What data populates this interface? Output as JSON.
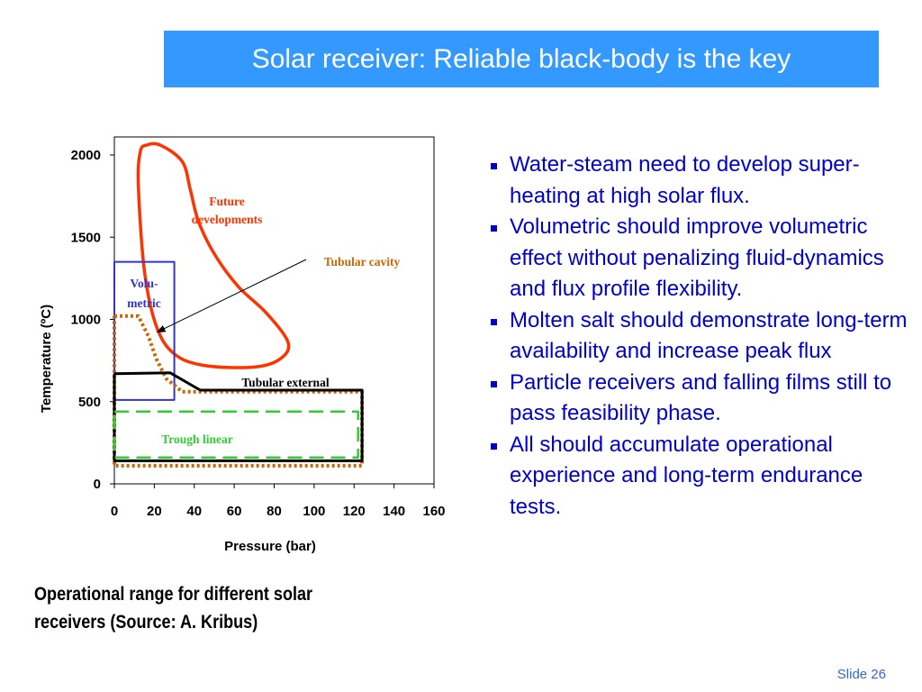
{
  "slide": {
    "title": "Solar receiver: Reliable black-body is the key",
    "caption_line1": "Operational range for different solar",
    "caption_line2": "receivers (Source: A. Kribus)",
    "slide_number": "Slide 26",
    "bullets": [
      "Water-steam need to develop super-heating at high solar flux.",
      "Volumetric should improve volumetric effect without penalizing fluid-dynamics and flux profile flexibility.",
      "Molten salt should demonstrate long-term availability and increase peak flux",
      "Particle receivers and falling films still to pass feasibility phase.",
      "All should accumulate operational experience and long-term endurance tests."
    ]
  },
  "chart_data": {
    "type": "area",
    "xlabel": "Pressure (bar)",
    "ylabel": "Temperature (ºC)",
    "xlim": [
      0,
      160
    ],
    "ylim": [
      0,
      2000
    ],
    "xticks": [
      "0",
      "20",
      "40",
      "60",
      "80",
      "100",
      "120",
      "140",
      "160"
    ],
    "yticks": [
      "0",
      "500",
      "1000",
      "1500",
      "2000"
    ],
    "grid": false,
    "colors": {
      "future": "#ff3300",
      "volumetric": "#3333cc",
      "tubular_cavity": "#cc6600",
      "tubular_external": "#000000",
      "trough": "#33cc33"
    },
    "regions": [
      {
        "name": "Future developments",
        "label_line1": "Future",
        "label_line2": "developments",
        "style": "solid",
        "points": [
          [
            12,
            1820
          ],
          [
            13,
            2020
          ],
          [
            16,
            2060
          ],
          [
            23,
            2060
          ],
          [
            34,
            1960
          ],
          [
            38,
            1790
          ],
          [
            42,
            1600
          ],
          [
            50,
            1400
          ],
          [
            62,
            1200
          ],
          [
            76,
            1040
          ],
          [
            87,
            860
          ],
          [
            83,
            760
          ],
          [
            70,
            710
          ],
          [
            45,
            720
          ],
          [
            30,
            790
          ],
          [
            21,
            960
          ],
          [
            15,
            1300
          ],
          [
            12,
            1820
          ]
        ]
      },
      {
        "name": "Volumetric",
        "label_line1": "Volu-",
        "label_line2": "metric",
        "style": "solid",
        "points": [
          [
            0,
            1350
          ],
          [
            30,
            1350
          ],
          [
            30,
            510
          ],
          [
            0,
            510
          ],
          [
            0,
            1350
          ]
        ]
      },
      {
        "name": "Tubular cavity",
        "label": "Tubular cavity",
        "style": "dotted",
        "points": [
          [
            0,
            1020
          ],
          [
            12,
            1020
          ],
          [
            17,
            900
          ],
          [
            21,
            760
          ],
          [
            26,
            640
          ],
          [
            34,
            560
          ],
          [
            124,
            560
          ],
          [
            124,
            110
          ],
          [
            0,
            110
          ],
          [
            0,
            1020
          ]
        ]
      },
      {
        "name": "Tubular external",
        "label": "Tubular external",
        "style": "solid",
        "points": [
          [
            0,
            670
          ],
          [
            28,
            675
          ],
          [
            43,
            570
          ],
          [
            124,
            570
          ],
          [
            124,
            140
          ],
          [
            0,
            140
          ],
          [
            0,
            670
          ]
        ]
      },
      {
        "name": "Trough linear",
        "label": "Trough linear",
        "style": "dashed",
        "points": [
          [
            0,
            440
          ],
          [
            122,
            440
          ],
          [
            122,
            160
          ],
          [
            0,
            160
          ],
          [
            0,
            440
          ]
        ]
      }
    ],
    "annotation": {
      "text": "Tubular cavity",
      "arrow_to": [
        21,
        920
      ]
    }
  }
}
